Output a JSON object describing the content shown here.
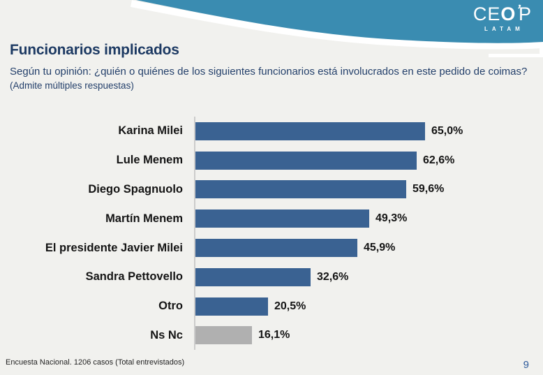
{
  "header": {
    "brand_name_pre": "CE",
    "brand_name_o": "O",
    "brand_tick": "’",
    "brand_name_post": "P",
    "brand_sub": "LATAM",
    "swoosh_color": "#3a8cb1"
  },
  "title": "Funcionarios implicados",
  "subtitle": "Según tu opinión: ¿quién o quiénes de los siguientes funcionarios está involucrados en este pedido de coimas?",
  "subtitle_note": "(Admite múltiples respuestas)",
  "chart_data": {
    "type": "bar",
    "orientation": "horizontal",
    "categories": [
      "Karina Milei",
      "Lule Menem",
      "Diego Spagnuolo",
      "Martín Menem",
      "El presidente Javier Milei",
      "Sandra Pettovello",
      "Otro",
      "Ns Nc"
    ],
    "values": [
      65.0,
      62.6,
      59.6,
      49.3,
      45.9,
      32.6,
      20.5,
      16.1
    ],
    "value_labels": [
      "65,0%",
      "62,6%",
      "59,6%",
      "49,3%",
      "45,9%",
      "32,6%",
      "20,5%",
      "16,1%"
    ],
    "bar_colors": [
      "#3a6292",
      "#3a6292",
      "#3a6292",
      "#3a6292",
      "#3a6292",
      "#3a6292",
      "#3a6292",
      "#b0b0b0"
    ],
    "xlim": [
      0,
      70
    ],
    "grid": false,
    "legend": false,
    "data_labels": "outside-end"
  },
  "footer": {
    "source": "Encuesta Nacional. 1206 casos (Total entrevistados)",
    "page_number": "9"
  }
}
